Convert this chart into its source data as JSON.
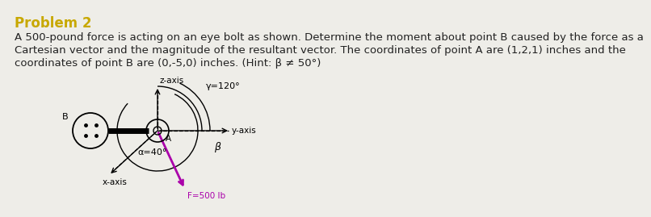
{
  "title": "Problem 2",
  "title_color": "#c8a800",
  "body_line1": "A 500-pound force is acting on an eye bolt as shown. Determine the moment about point B caused by the force as a",
  "body_line2": "Cartesian vector and the magnitude of the resultant vector. The coordinates of point A are (1,2,1) inches and the",
  "body_line3": "coordinates of point B are (0,-5,0) inches. (Hint: β ≠ 50°)",
  "body_fontsize": 9.5,
  "bg_color": "#eeede8",
  "z_axis_label": "z-axis",
  "y_axis_label": "y-axis",
  "x_axis_label": "x-axis",
  "gamma_label": "γ=120°",
  "alpha_label": "α=40°",
  "beta_label": "β",
  "force_label": "F=500 lb",
  "point_A_label": "A",
  "point_B_label": "B",
  "force_color": "#aa00aa",
  "text_color": "#222222"
}
